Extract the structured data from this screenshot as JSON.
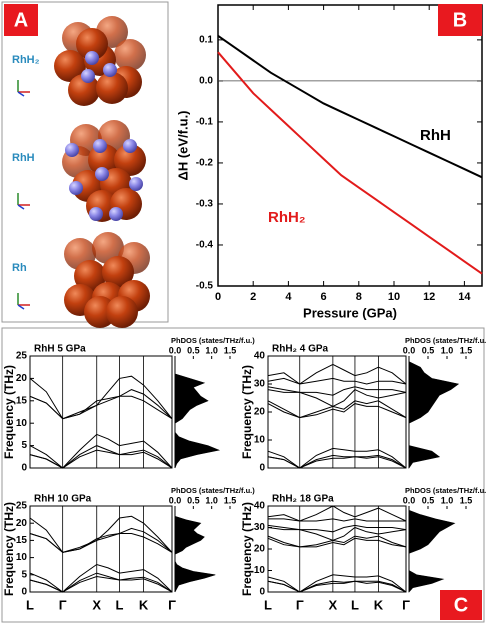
{
  "panel_labels": [
    "A",
    "B",
    "C"
  ],
  "structures": [
    "RhH₂",
    "RhH",
    "Rh"
  ],
  "kpath": [
    {
      "value": 0,
      "label": "L"
    },
    {
      "value": 0.23,
      "label": "Γ"
    },
    {
      "value": 0.47,
      "label": "X"
    },
    {
      "value": 0.63,
      "label": "L"
    },
    {
      "value": 0.8,
      "label": "K"
    },
    {
      "value": 1,
      "label": "Γ"
    }
  ],
  "band_x": [
    0,
    0.115,
    0.23,
    0.35,
    0.47,
    0.55,
    0.63,
    0.715,
    0.8,
    0.9,
    1
  ],
  "chart_data": [
    {
      "type": "line",
      "xlabel": "Pressure (GPa)",
      "ylabel": "ΔH (eV/f.u.)",
      "x": [
        0,
        1,
        2,
        3,
        4,
        5,
        6,
        7,
        8,
        9,
        10,
        11,
        12,
        13,
        14,
        15
      ],
      "series": [
        {
          "name": "RhH",
          "color": "#000000",
          "values": [
            0.11,
            0.08,
            0.05,
            0.02,
            -0.005,
            -0.03,
            -0.055,
            -0.075,
            -0.095,
            -0.115,
            -0.135,
            -0.155,
            -0.175,
            -0.195,
            -0.215,
            -0.235
          ]
        },
        {
          "name": "RhH₂",
          "color": "#e21b1b",
          "values": [
            0.07,
            0.02,
            -0.03,
            -0.07,
            -0.11,
            -0.15,
            -0.19,
            -0.23,
            -0.26,
            -0.29,
            -0.32,
            -0.35,
            -0.38,
            -0.41,
            -0.44,
            -0.47
          ]
        }
      ],
      "xlim": [
        0,
        15
      ],
      "ylim": [
        -0.5,
        0.185
      ],
      "xticks": [
        0,
        2,
        4,
        6,
        8,
        10,
        12,
        14
      ],
      "yticks": [
        0.1,
        {
          "value": 0,
          "label": "0.0"
        },
        -0.1,
        -0.2,
        -0.3,
        -0.4,
        -0.5
      ],
      "hline": 0
    },
    {
      "type": "phonon",
      "title": "RhH 5 GPa",
      "ylabel": "Frequency (THz)",
      "ylim": [
        0,
        25
      ],
      "yticks": [
        0,
        5,
        10,
        15,
        20,
        25
      ],
      "bands": [
        [
          5,
          3,
          0,
          4,
          7.5,
          6.5,
          5,
          5.5,
          6,
          3.5,
          0
        ],
        [
          3,
          2,
          0,
          3,
          5,
          4,
          3,
          3.5,
          4,
          2.5,
          0
        ],
        [
          3,
          2,
          0,
          2.5,
          4,
          3.5,
          3,
          3,
          3.5,
          2,
          0
        ],
        [
          20,
          17,
          11,
          12.5,
          14,
          17,
          20,
          20.5,
          18.5,
          15,
          11
        ],
        [
          16,
          14.5,
          11,
          12,
          14,
          15,
          16,
          17.5,
          16.5,
          14,
          11
        ],
        [
          16,
          14.5,
          11,
          12,
          15,
          15.5,
          16,
          16,
          15,
          13,
          11
        ]
      ],
      "dos_label": "PhDOS (states/THz/f.u.)",
      "dos_xlim": [
        0,
        1.5
      ],
      "dos_xticks": [
        {
          "value": 0,
          "label": "0.0"
        },
        0.5,
        {
          "value": 1,
          "label": "1.0"
        },
        1.5
      ],
      "dos_freq": [
        0,
        1,
        2,
        3,
        4,
        5,
        6,
        7,
        8,
        9,
        10,
        11,
        12,
        13,
        14,
        15,
        16,
        17,
        18,
        19,
        20,
        21,
        22,
        23,
        24,
        25
      ],
      "dos": [
        0,
        0.05,
        0.15,
        0.6,
        1.2,
        0.9,
        0.4,
        0.1,
        0,
        0,
        0,
        0.2,
        0.3,
        0.4,
        0.6,
        0.9,
        0.7,
        0.6,
        0.5,
        0.8,
        0.4,
        0,
        0,
        0,
        0,
        0
      ]
    },
    {
      "type": "phonon",
      "title": "RhH₂ 4 GPa",
      "ylabel": "Frequency (THz)",
      "ylim": [
        0,
        40
      ],
      "yticks": [
        0,
        10,
        20,
        30,
        40
      ],
      "bands": [
        [
          6,
          4,
          0,
          4.5,
          7,
          6.5,
          6,
          6,
          6.5,
          4,
          0
        ],
        [
          4,
          3,
          0,
          3,
          4.5,
          4,
          4,
          4,
          4.5,
          3,
          0
        ],
        [
          4,
          3,
          0,
          2.5,
          3.5,
          3.5,
          4,
          3.5,
          4,
          2.5,
          0
        ],
        [
          33,
          34,
          30,
          34,
          37,
          35,
          33,
          34,
          36,
          34,
          30
        ],
        [
          31,
          32,
          30,
          31,
          32,
          31,
          31,
          30,
          31,
          31,
          30
        ],
        [
          29,
          28,
          27,
          27,
          26,
          28,
          29,
          28,
          28,
          28,
          27
        ],
        [
          28,
          27,
          27,
          25,
          22,
          24,
          28,
          26,
          25,
          26,
          27
        ],
        [
          24,
          21,
          18,
          20,
          22,
          21,
          24,
          23,
          24,
          21,
          18
        ],
        [
          23,
          20,
          18,
          19,
          21,
          20,
          23,
          22,
          22,
          20,
          18
        ]
      ],
      "dos_label": "PhDOS (states/THz/f.u.)",
      "dos_xlim": [
        0,
        1.5
      ],
      "dos_xticks": [
        {
          "value": 0,
          "label": "0.0"
        },
        0.5,
        {
          "value": 1,
          "label": "1.0"
        },
        1.5
      ],
      "dos_freq": [
        0,
        2,
        4,
        6,
        8,
        10,
        12,
        14,
        16,
        18,
        20,
        22,
        24,
        26,
        28,
        30,
        32,
        34,
        36,
        38,
        40
      ],
      "dos": [
        0,
        0.1,
        0.8,
        0.6,
        0,
        0,
        0,
        0,
        0,
        0.3,
        0.5,
        0.6,
        0.7,
        0.8,
        1.1,
        1.3,
        0.6,
        0.4,
        0.3,
        0,
        0
      ]
    },
    {
      "type": "phonon",
      "title": "RhH 10 GPa",
      "ylabel": "Frequency (THz)",
      "ylim": [
        0,
        25
      ],
      "yticks": [
        0,
        5,
        10,
        15,
        20,
        25
      ],
      "bands": [
        [
          5.5,
          3.5,
          0,
          4.5,
          8,
          7,
          5.5,
          6,
          6.5,
          4,
          0
        ],
        [
          3.5,
          2.2,
          0,
          3.3,
          5.5,
          4.5,
          3.5,
          4,
          4.3,
          2.8,
          0
        ],
        [
          3.5,
          2.2,
          0,
          2.8,
          4.5,
          4,
          3.5,
          3.5,
          3.8,
          2.3,
          0
        ],
        [
          21.5,
          18,
          11.5,
          13,
          15,
          18,
          21.5,
          22,
          20,
          16,
          11.5
        ],
        [
          17,
          15.5,
          11.5,
          12.5,
          15,
          16,
          17,
          18.5,
          17.5,
          15,
          11.5
        ],
        [
          17,
          15.5,
          11.5,
          12.5,
          15.5,
          16.5,
          17,
          17,
          16,
          14,
          11.5
        ]
      ],
      "dos_label": "PhDOS (states/THz/f.u.)",
      "dos_xlim": [
        0,
        1.5
      ],
      "dos_xticks": [
        {
          "value": 0,
          "label": "0.0"
        },
        0.5,
        {
          "value": 1,
          "label": "1.0"
        },
        1.5
      ],
      "dos_freq": [
        0,
        1,
        2,
        3,
        4,
        5,
        6,
        7,
        8,
        9,
        10,
        11,
        12,
        13,
        14,
        15,
        16,
        17,
        18,
        19,
        20,
        21,
        22,
        23,
        24,
        25
      ],
      "dos": [
        0,
        0.05,
        0.1,
        0.4,
        0.8,
        1.1,
        0.5,
        0.2,
        0.05,
        0,
        0,
        0,
        0.2,
        0.3,
        0.5,
        0.7,
        0.8,
        0.6,
        0.5,
        0.6,
        0.7,
        0.3,
        0,
        0,
        0,
        0
      ]
    },
    {
      "type": "phonon",
      "title": "RhH₂ 18 GPa",
      "ylabel": "Frequency (THz)",
      "ylim": [
        0,
        40
      ],
      "yticks": [
        0,
        10,
        20,
        30,
        40
      ],
      "bands": [
        [
          7,
          5,
          0,
          5,
          8,
          7.5,
          7,
          7,
          7.5,
          5,
          0
        ],
        [
          5,
          3.5,
          0,
          3.5,
          5,
          4.5,
          5,
          5,
          5,
          3.5,
          0
        ],
        [
          5,
          3.5,
          0,
          3,
          4,
          4,
          5,
          4,
          4.5,
          3,
          0
        ],
        [
          35,
          36,
          33,
          36,
          40,
          37,
          35,
          37,
          39,
          36,
          33
        ],
        [
          34,
          34,
          33,
          33,
          34,
          33,
          34,
          33,
          33,
          33,
          33
        ],
        [
          31,
          30,
          29,
          29,
          28,
          30,
          31,
          30,
          30,
          30,
          29
        ],
        [
          30,
          29,
          29,
          27,
          24,
          26,
          30,
          28,
          27,
          28,
          29
        ],
        [
          26,
          23,
          21,
          22,
          24,
          23,
          26,
          25,
          26,
          23,
          21
        ],
        [
          25,
          22,
          21,
          21,
          23,
          22,
          25,
          24,
          24,
          22,
          21
        ]
      ],
      "dos_label": "PhDOS (states/THz/f.u.)",
      "dos_xlim": [
        0,
        1.5
      ],
      "dos_xticks": [
        {
          "value": 0,
          "label": "0.0"
        },
        0.5,
        {
          "value": 1,
          "label": "1.0"
        },
        1.5
      ],
      "dos_freq": [
        0,
        2,
        4,
        6,
        8,
        10,
        12,
        14,
        16,
        18,
        20,
        22,
        24,
        26,
        28,
        30,
        32,
        34,
        36,
        38,
        40
      ],
      "dos": [
        0,
        0.1,
        0.6,
        0.9,
        0.2,
        0,
        0,
        0,
        0,
        0,
        0.3,
        0.5,
        0.6,
        0.7,
        0.8,
        1.0,
        1.2,
        0.7,
        0.3,
        0,
        0
      ]
    }
  ]
}
